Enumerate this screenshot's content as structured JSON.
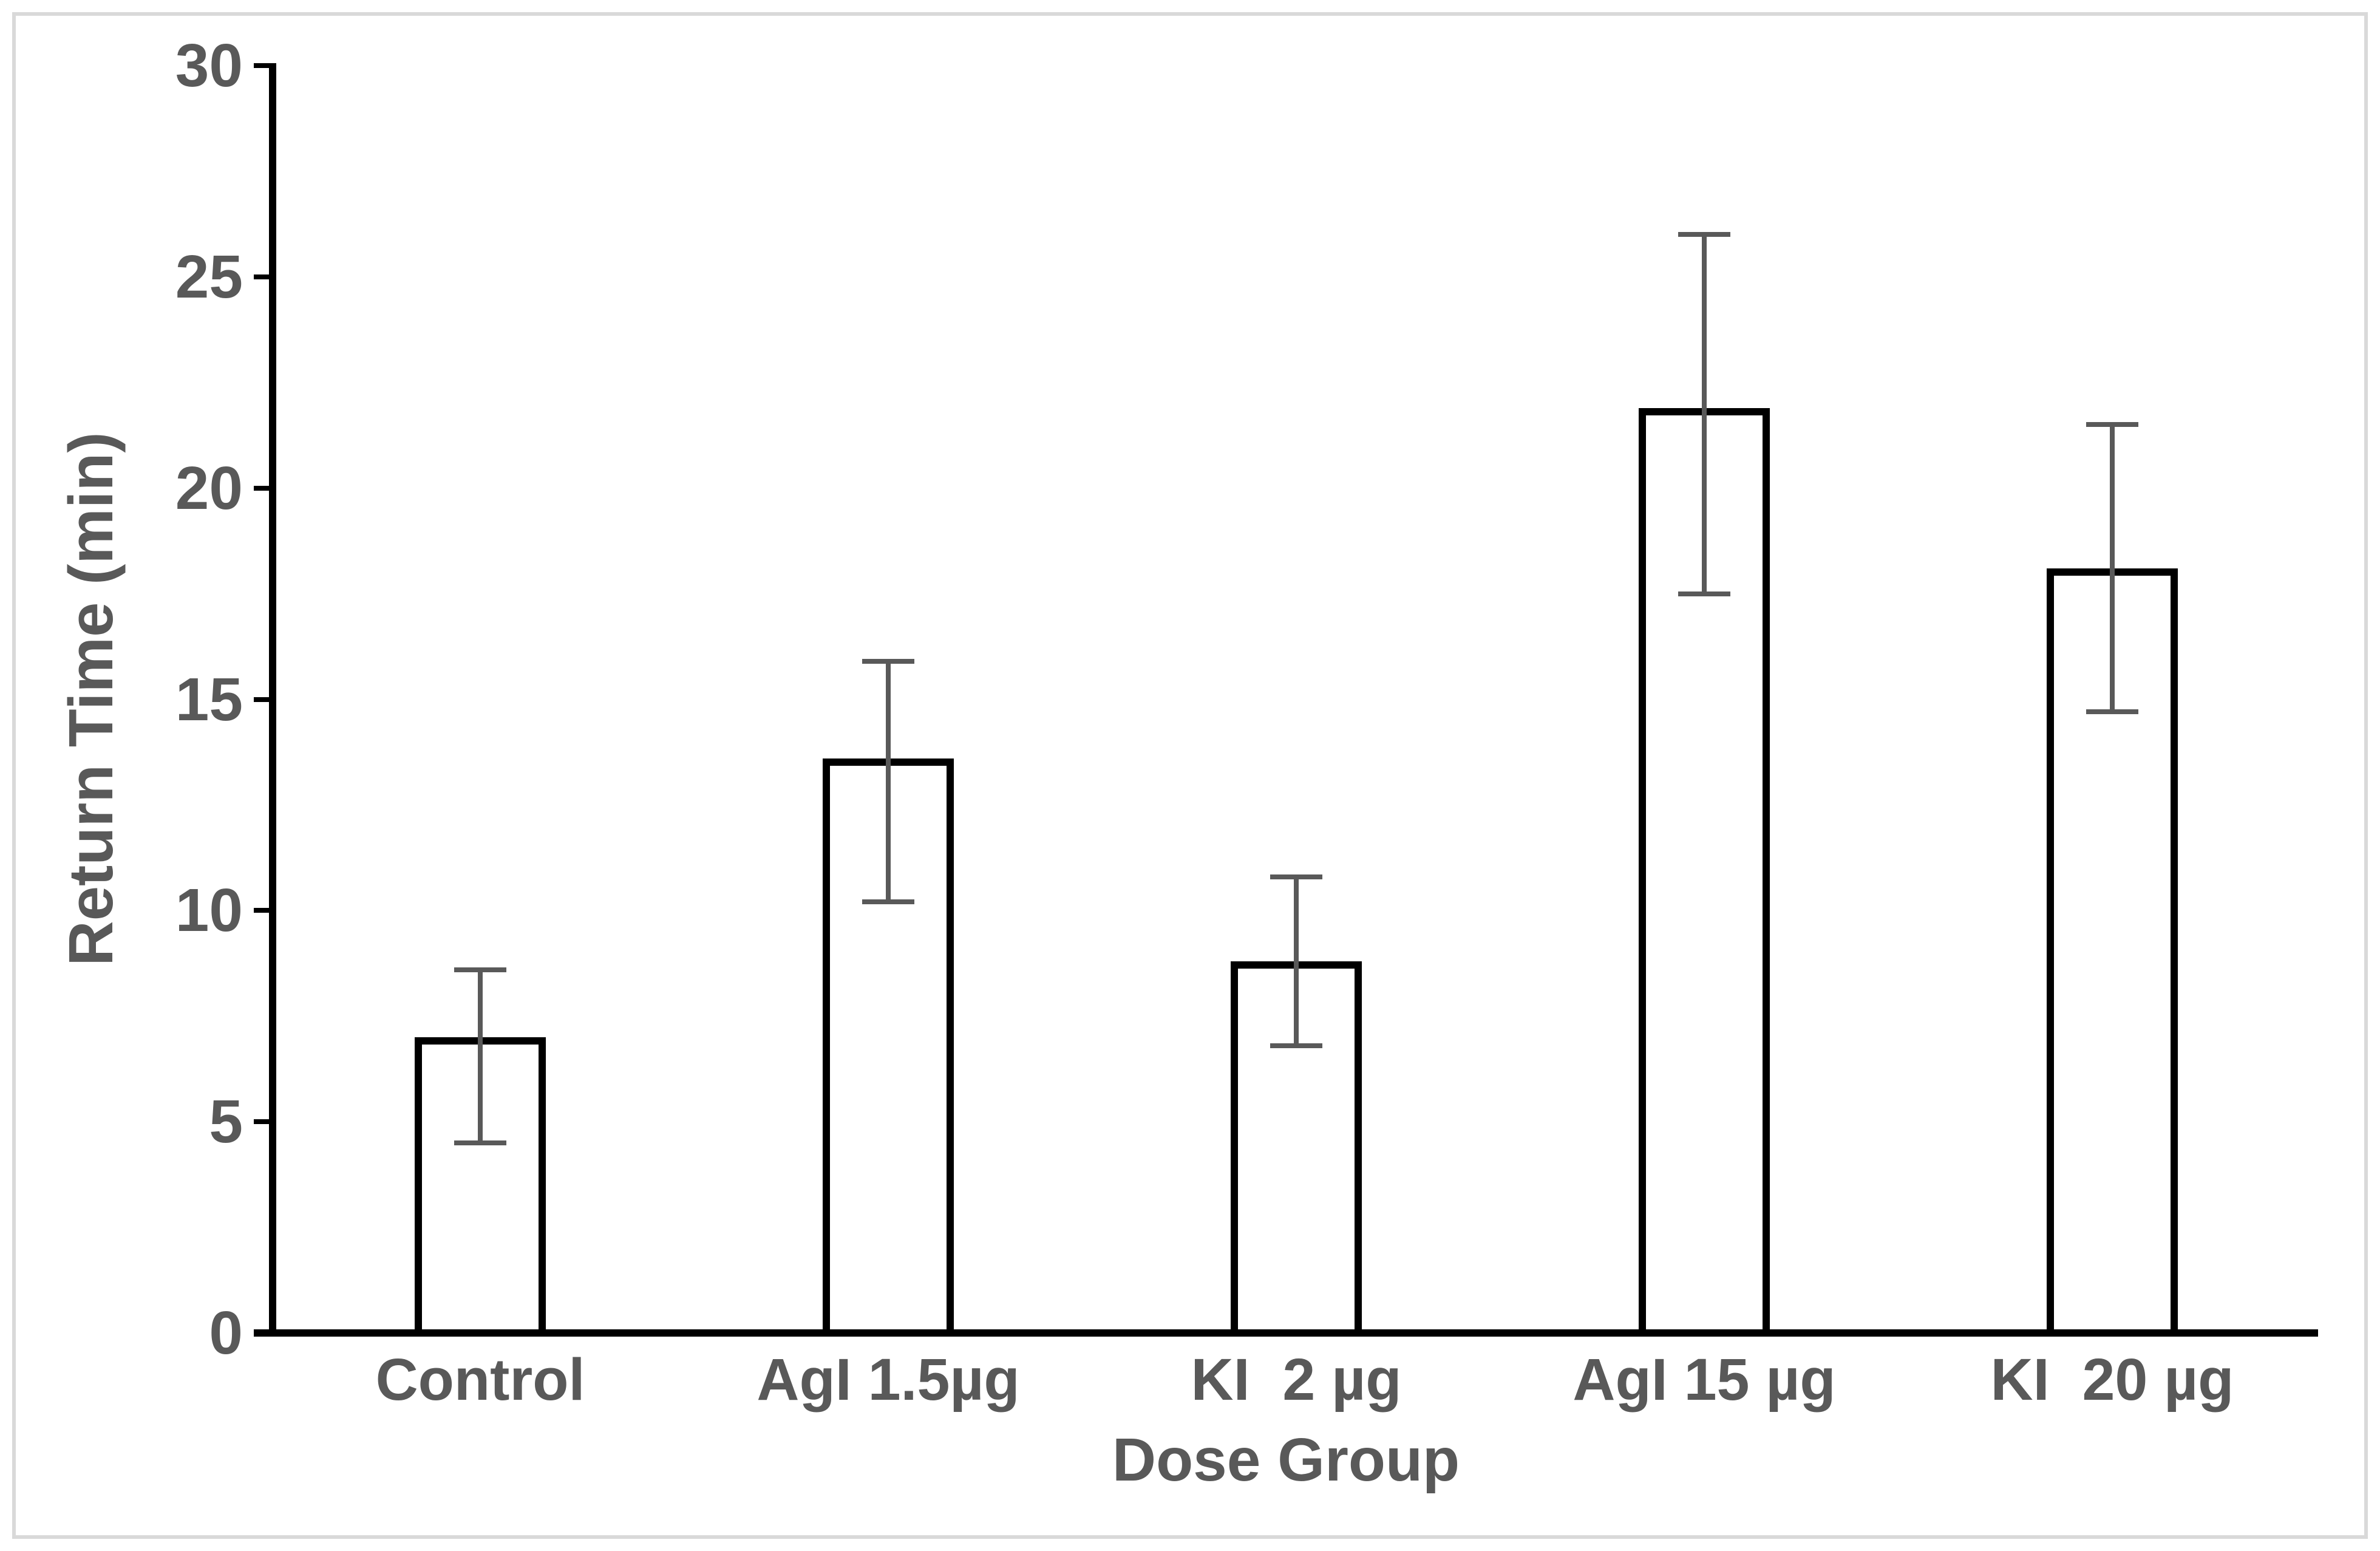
{
  "figure": {
    "background": "#ffffff",
    "frame_color": "#d9d9d9"
  },
  "chart_data": {
    "type": "bar",
    "title": "",
    "categories": [
      "Control",
      "AgI 1.5µg",
      "KI  2 µg",
      "AgI 15 µg",
      "KI  20 µg"
    ],
    "values": [
      7.0,
      13.6,
      8.8,
      21.9,
      18.1
    ],
    "error_high": [
      8.6,
      15.9,
      10.8,
      26.0,
      21.5
    ],
    "error_low": [
      4.5,
      10.2,
      6.8,
      17.5,
      14.7
    ],
    "xlabel": "Dose Group",
    "ylabel": "Return Time (min)",
    "ylim": [
      0,
      30
    ],
    "yticks": [
      0,
      5,
      10,
      15,
      20,
      25,
      30
    ],
    "grid": false,
    "legend": "none",
    "bar_fill": "#ffffff",
    "bar_border_color": "#000000",
    "error_bar_color": "#595959",
    "axis_color": "#000000",
    "text_color": "#595959"
  }
}
